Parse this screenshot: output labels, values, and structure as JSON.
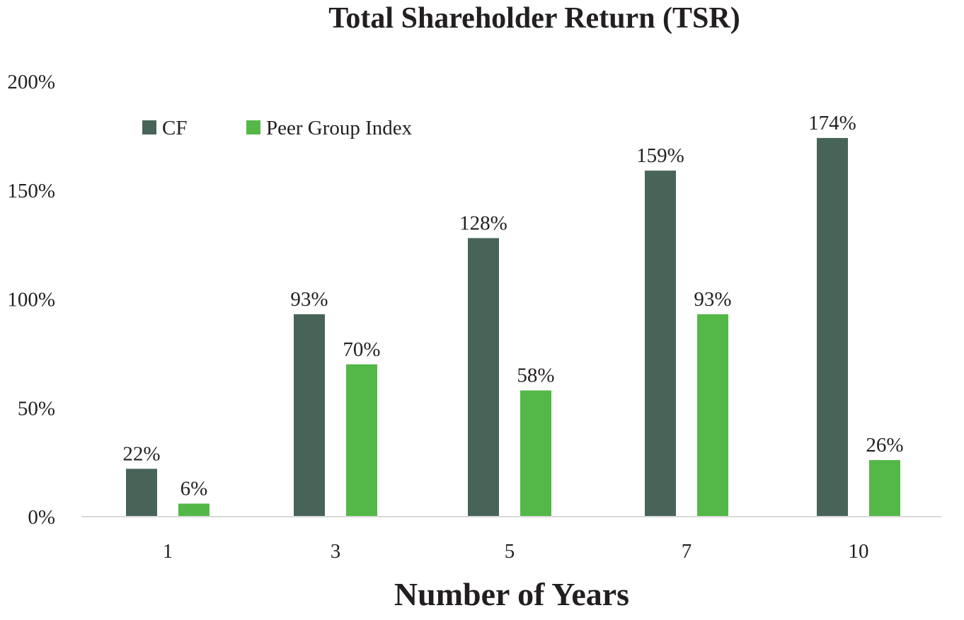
{
  "chart_data": {
    "type": "bar",
    "title": "Total Shareholder Return (TSR)",
    "xlabel": "Number of Years",
    "ylabel": "",
    "categories": [
      "1",
      "3",
      "5",
      "7",
      "10"
    ],
    "series": [
      {
        "name": "CF",
        "color": "#486458",
        "values": [
          22,
          93,
          128,
          159,
          174
        ],
        "labels": [
          "22%",
          "93%",
          "128%",
          "159%",
          "174%"
        ]
      },
      {
        "name": "Peer Group Index",
        "color": "#54b848",
        "values": [
          6,
          70,
          58,
          93,
          26
        ],
        "labels": [
          "6%",
          "70%",
          "58%",
          "93%",
          "26%"
        ]
      }
    ],
    "yticks": [
      0,
      50,
      100,
      150,
      200
    ],
    "ytick_labels": [
      "0%",
      "50%",
      "100%",
      "150%",
      "200%"
    ],
    "ylim": [
      0,
      200
    ],
    "grid": false,
    "legend": "top-left"
  }
}
